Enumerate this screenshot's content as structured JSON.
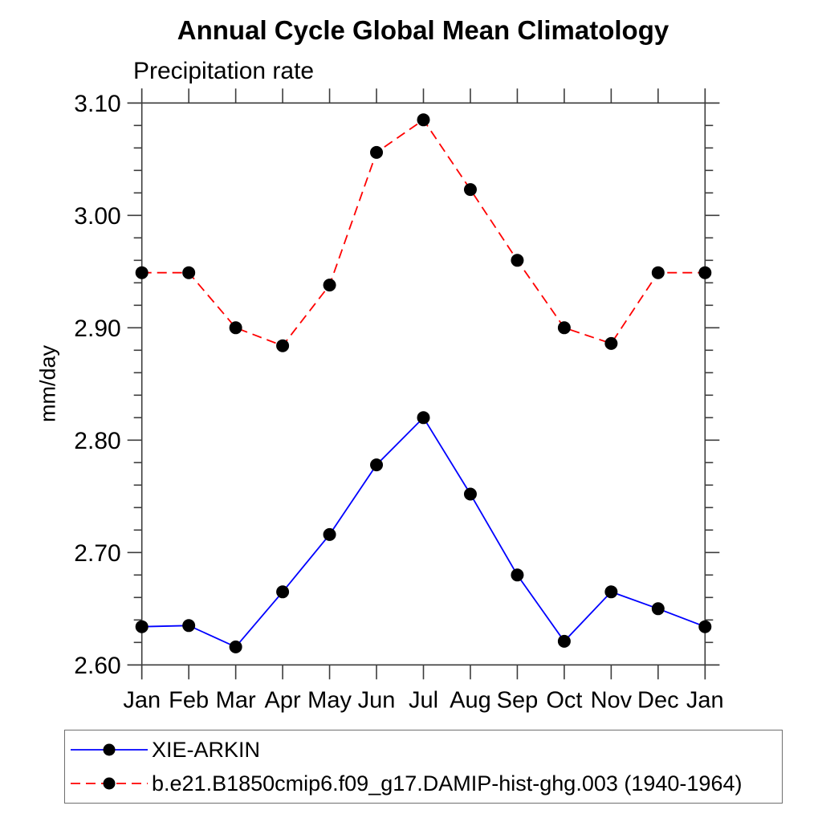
{
  "title": "Annual Cycle Global Mean Climatology",
  "subtitle": "Precipitation rate",
  "ylabel": "mm/day",
  "legend": {
    "position": "below-plot",
    "marker_color": "#000000",
    "items": [
      {
        "label": "XIE-ARKIN",
        "color": "#0000ff",
        "style": "solid"
      },
      {
        "label": "b.e21.B1850cmip6.f09_g17.DAMIP-hist-ghg.003 (1940-1964)",
        "color": "#ff0000",
        "style": "dashed"
      }
    ]
  },
  "chart_data": {
    "type": "line",
    "title": "Annual Cycle Global Mean Climatology",
    "subtitle": "Precipitation rate",
    "xlabel": "",
    "ylabel": "mm/day",
    "x_tick_labels": [
      "Jan",
      "Feb",
      "Mar",
      "Apr",
      "May",
      "Jun",
      "Jul",
      "Aug",
      "Sep",
      "Oct",
      "Nov",
      "Dec",
      "Jan"
    ],
    "ylim": [
      2.6,
      3.1
    ],
    "y_major_ticks": [
      2.6,
      2.7,
      2.8,
      2.9,
      3.0,
      3.1
    ],
    "y_minor_step": 0.02,
    "grid": false,
    "legend_position": "below",
    "marker": "filled-circle",
    "series": [
      {
        "name": "XIE-ARKIN",
        "color": "#0000ff",
        "line_style": "solid",
        "marker_color": "#000000",
        "values": [
          2.634,
          2.635,
          2.616,
          2.665,
          2.716,
          2.778,
          2.82,
          2.752,
          2.68,
          2.621,
          2.665,
          2.65,
          2.634
        ]
      },
      {
        "name": "b.e21.B1850cmip6.f09_g17.DAMIP-hist-ghg.003 (1940-1964)",
        "color": "#ff0000",
        "line_style": "dashed",
        "marker_color": "#000000",
        "values": [
          2.949,
          2.949,
          2.9,
          2.884,
          2.938,
          3.056,
          3.085,
          3.023,
          2.96,
          2.9,
          2.886,
          2.949,
          2.949
        ]
      }
    ]
  }
}
